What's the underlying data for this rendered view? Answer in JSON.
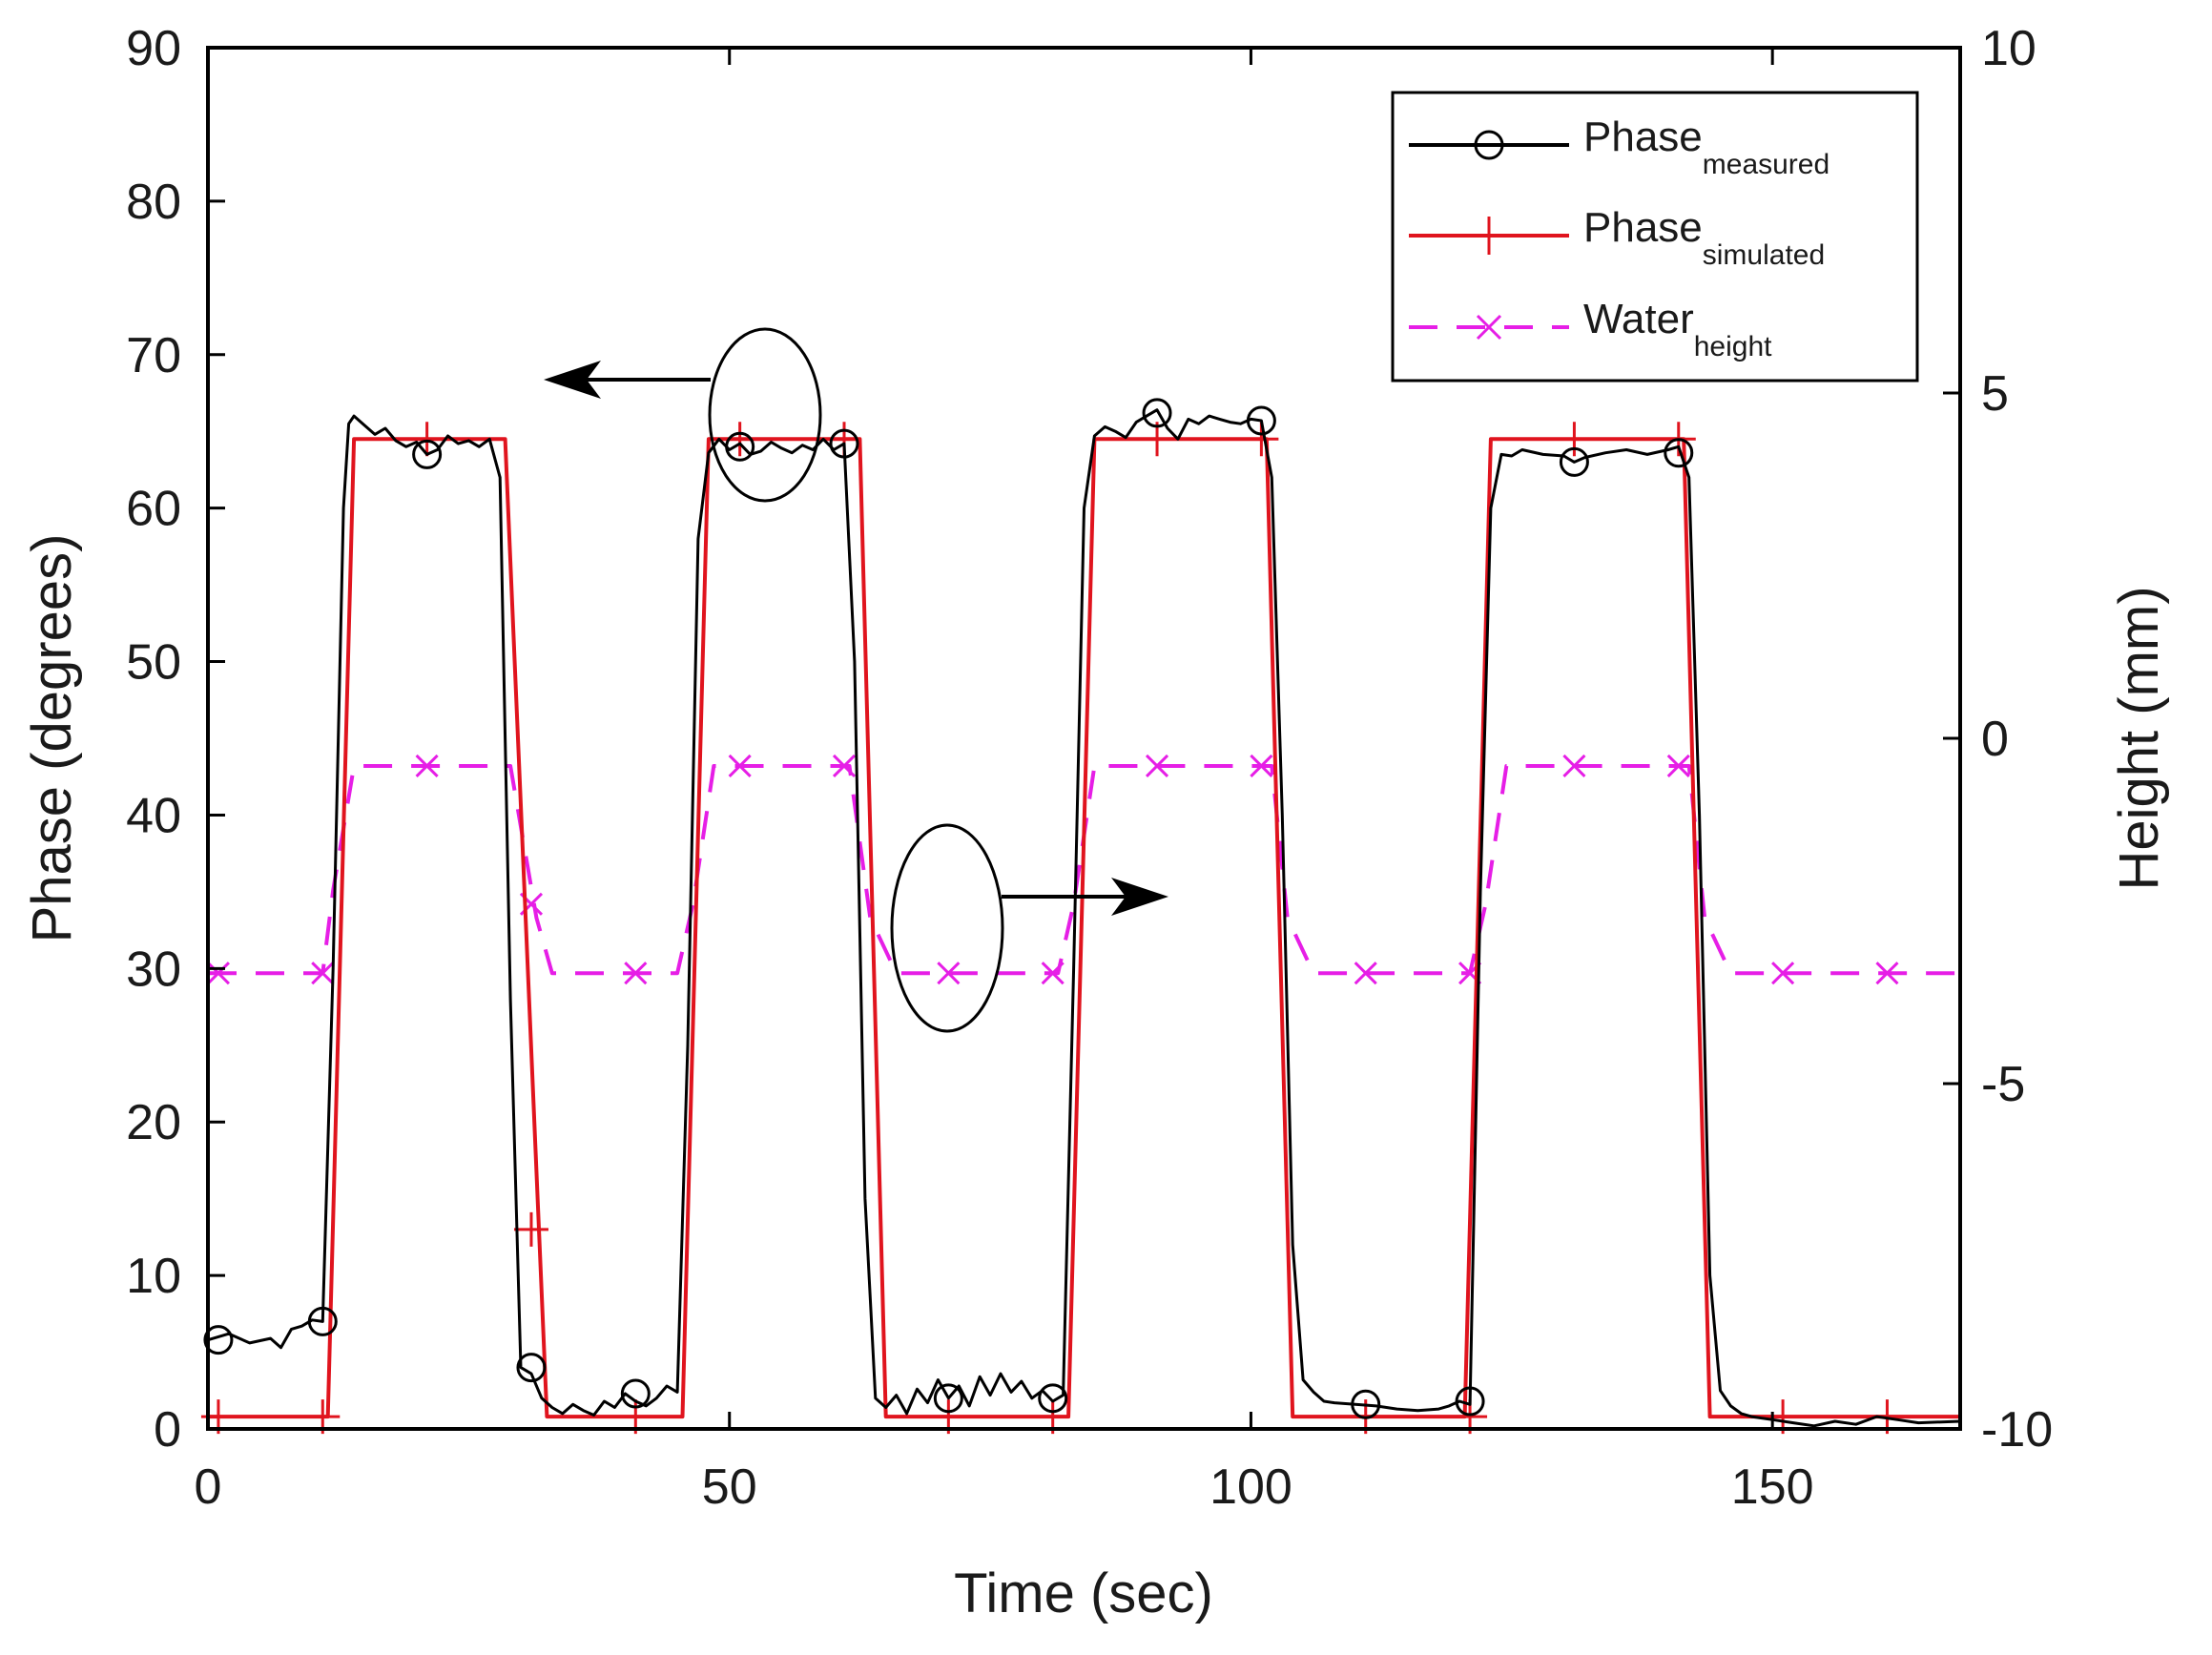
{
  "chart_data": {
    "type": "line",
    "xlabel": "Time (sec)",
    "ylabel_left": "Phase (degrees)",
    "ylabel_right": "Height (mm)",
    "xlim": [
      0,
      168
    ],
    "ylim_left": [
      0,
      90
    ],
    "ylim_right": [
      -10,
      10
    ],
    "xticks": [
      0,
      50,
      100,
      150
    ],
    "yticks_left": [
      0,
      10,
      20,
      30,
      40,
      50,
      60,
      70,
      80,
      90
    ],
    "yticks_right": [
      -10,
      -5,
      0,
      5,
      10
    ],
    "xtick_labels": [
      "0",
      "50",
      "100",
      "150"
    ],
    "yticks_left_labels": [
      "0",
      "10",
      "20",
      "30",
      "40",
      "50",
      "60",
      "70",
      "80",
      "90"
    ],
    "yticks_right_labels": [
      "-10",
      "-5",
      "0",
      "5",
      "10"
    ],
    "grid": false,
    "legend_position": "top-right",
    "legend": [
      {
        "base": "Phase",
        "sub": "measured",
        "color": "#000000",
        "marker": "circle",
        "dash": "solid"
      },
      {
        "base": "Phase",
        "sub": "simulated",
        "color": "#e0141e",
        "marker": "plus",
        "dash": "solid"
      },
      {
        "base": "Water",
        "sub": "height",
        "color": "#e61ee6",
        "marker": "x",
        "dash": "dashed"
      }
    ],
    "series": [
      {
        "name": "Phase measured",
        "axis": "left",
        "color": "#000000",
        "marker": "circle",
        "x": [
          0,
          2,
          4,
          6,
          7,
          8,
          9,
          10,
          11,
          12,
          13,
          13.5,
          14,
          15,
          16,
          17,
          18,
          19,
          20,
          21,
          22,
          23,
          24,
          25,
          26,
          27,
          28,
          28.5,
          29,
          30,
          31,
          32,
          33,
          34,
          35,
          36,
          37,
          38,
          39,
          40,
          41,
          42,
          43,
          44,
          45,
          46,
          47,
          48,
          49,
          50,
          51,
          52,
          53,
          54,
          55,
          56,
          57,
          58,
          59,
          60,
          61,
          62,
          63,
          64,
          65,
          66,
          67,
          68,
          69,
          70,
          71,
          72,
          73,
          74,
          75,
          76,
          77,
          78,
          79,
          80,
          81,
          82,
          83,
          84,
          85,
          86,
          87,
          88,
          89,
          90,
          91,
          92,
          93,
          94,
          95,
          96,
          97,
          98,
          99,
          100,
          101,
          102,
          103,
          104,
          105,
          106,
          107,
          108,
          110,
          112,
          114,
          116,
          118,
          119,
          120,
          121,
          122,
          123,
          124,
          125,
          126,
          128,
          130,
          131,
          132,
          134,
          136,
          138,
          140,
          141,
          142,
          143,
          144,
          145,
          146,
          147,
          148,
          150,
          152,
          154,
          156,
          158,
          160,
          162,
          164,
          168
        ],
        "y": [
          5.8,
          6.2,
          5.6,
          5.9,
          5.3,
          6.5,
          6.7,
          7.1,
          7.0,
          30.0,
          60.0,
          65.5,
          66.0,
          65.4,
          64.8,
          65.2,
          64.4,
          64.0,
          64.3,
          63.5,
          63.8,
          64.7,
          64.2,
          64.4,
          64.0,
          64.5,
          62.0,
          45.0,
          28.0,
          4.0,
          3.6,
          2.0,
          1.4,
          1.0,
          1.6,
          1.2,
          0.9,
          1.8,
          1.4,
          2.3,
          1.8,
          1.5,
          2.0,
          2.8,
          2.4,
          25.0,
          58.0,
          63.6,
          64.5,
          63.8,
          64.2,
          63.5,
          63.7,
          64.3,
          63.9,
          63.6,
          64.1,
          63.8,
          64.5,
          63.8,
          64.2,
          50.0,
          15.0,
          2.0,
          1.4,
          2.2,
          1.0,
          2.6,
          1.7,
          3.2,
          2.0,
          2.8,
          1.5,
          3.4,
          2.2,
          3.6,
          2.4,
          3.1,
          2.0,
          2.5,
          1.8,
          2.2,
          30.0,
          60.0,
          64.7,
          65.3,
          65.0,
          64.6,
          65.6,
          66.0,
          66.4,
          65.2,
          64.5,
          65.8,
          65.5,
          66.0,
          65.8,
          65.6,
          65.5,
          65.8,
          65.7,
          62.0,
          40.0,
          12.0,
          3.2,
          2.4,
          1.8,
          1.7,
          1.6,
          1.5,
          1.3,
          1.2,
          1.3,
          1.5,
          1.8,
          1.6,
          35.0,
          60.0,
          63.5,
          63.4,
          63.8,
          63.5,
          63.4,
          63.0,
          63.3,
          63.6,
          63.8,
          63.5,
          63.8,
          64.0,
          62.0,
          40.0,
          10.0,
          2.5,
          1.5,
          1.0,
          0.8,
          0.6,
          0.4,
          0.2,
          0.5,
          0.3,
          0.8,
          0.6,
          0.4,
          0.5
        ],
        "markers_x": [
          1,
          11,
          21,
          31,
          41,
          51,
          61,
          71,
          81,
          91,
          101,
          111,
          121,
          131,
          141
        ],
        "markers_y": [
          5.8,
          7.0,
          63.5,
          4.0,
          2.3,
          64.0,
          64.2,
          2.0,
          2.0,
          66.2,
          65.7,
          1.6,
          1.8,
          63.0,
          63.6
        ]
      },
      {
        "name": "Phase simulated",
        "axis": "left",
        "color": "#e0141e",
        "marker": "plus",
        "x": [
          0,
          11.5,
          14,
          28.5,
          32.5,
          45.5,
          48,
          62.5,
          65,
          82.5,
          85,
          101.5,
          104,
          120.5,
          123,
          141.5,
          144,
          168
        ],
        "y": [
          0.8,
          0.8,
          64.5,
          64.5,
          0.8,
          0.8,
          64.5,
          64.5,
          0.8,
          0.8,
          64.5,
          64.5,
          0.8,
          0.8,
          64.5,
          64.5,
          0.8,
          0.8
        ],
        "markers_x": [
          1,
          11,
          21,
          31,
          41,
          51,
          61,
          71,
          81,
          91,
          101,
          111,
          121,
          131,
          141,
          151,
          161
        ],
        "markers_y": [
          0.8,
          0.8,
          64.5,
          13.0,
          0.8,
          64.5,
          64.5,
          0.8,
          0.8,
          64.5,
          64.5,
          0.8,
          0.8,
          64.5,
          64.5,
          0.8,
          0.8
        ]
      },
      {
        "name": "Water height",
        "axis": "right",
        "color": "#e61ee6",
        "marker": "x",
        "x": [
          0,
          11,
          12,
          14,
          29,
          31.5,
          33,
          45,
          46.5,
          48.5,
          61.5,
          63.5,
          66,
          81.5,
          83,
          85,
          102,
          103.5,
          106,
          121,
          122.5,
          124.5,
          142,
          143.5,
          146,
          168
        ],
        "y": [
          -3.4,
          -3.4,
          -2.2,
          -0.4,
          -0.4,
          -2.6,
          -3.4,
          -3.4,
          -2.4,
          -0.4,
          -0.4,
          -2.6,
          -3.4,
          -3.4,
          -2.4,
          -0.4,
          -0.4,
          -2.6,
          -3.4,
          -3.4,
          -2.4,
          -0.4,
          -0.4,
          -2.6,
          -3.4,
          -3.4
        ],
        "markers_x": [
          1,
          11,
          21,
          31,
          41,
          51,
          61,
          71,
          81,
          91,
          101,
          111,
          121,
          131,
          141,
          151,
          161
        ],
        "markers_y": [
          -3.4,
          -3.4,
          -0.4,
          -2.4,
          -3.4,
          -0.4,
          -0.4,
          -3.4,
          -3.4,
          -0.4,
          -0.4,
          -3.4,
          -3.4,
          -0.4,
          -0.4,
          -3.4,
          -3.4
        ]
      }
    ]
  }
}
